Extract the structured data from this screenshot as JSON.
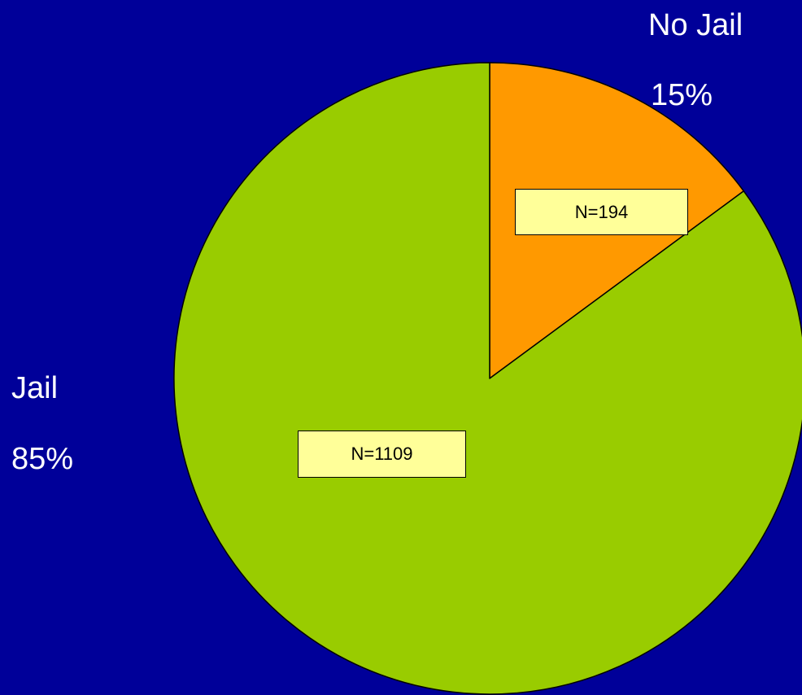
{
  "chart_data": {
    "type": "pie",
    "slices": [
      {
        "name": "No Jail",
        "percent_label": "15%",
        "n_label": "N=194",
        "value": 194,
        "color": "#FF9900"
      },
      {
        "name": "Jail",
        "percent_label": "85%",
        "n_label": "N=1109",
        "value": 1109,
        "color": "#99CC00"
      }
    ]
  }
}
